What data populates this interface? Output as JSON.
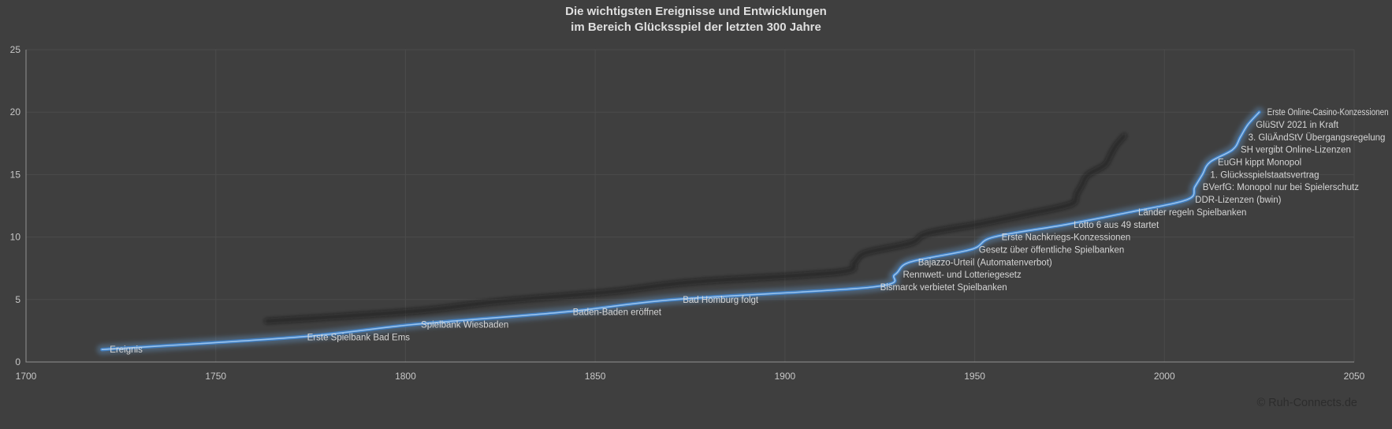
{
  "title": {
    "line1": "Die wichtigsten Ereignisse und Entwicklungen",
    "line2": "im Bereich Glücksspiel der letzten 300 Jahre"
  },
  "watermark": {
    "text": "© Ruh-Connects.de"
  },
  "chart_data": {
    "type": "line",
    "title": "Die wichtigsten Ereignisse und Entwicklungen im Bereich Glücksspiel der letzten 300 Jahre",
    "xlabel": "",
    "ylabel": "",
    "xlim": [
      1700,
      2050
    ],
    "ylim": [
      0,
      25
    ],
    "x_ticks": [
      1700,
      1750,
      1800,
      1850,
      1900,
      1950,
      2000,
      2050
    ],
    "y_ticks": [
      0,
      5,
      10,
      15,
      20,
      25
    ],
    "grid": true,
    "legend": false,
    "line_style": "smoothed, glow, perspective-shadow",
    "series": [
      {
        "name": "Ereignis",
        "color": "#5b9bd5",
        "points": [
          {
            "x": 1720,
            "y": 1,
            "label": "Ereignis"
          },
          {
            "x": 1772,
            "y": 2,
            "label": "Erste Spielbank Bad Ems"
          },
          {
            "x": 1802,
            "y": 3,
            "label": "Spielbank Wiesbaden"
          },
          {
            "x": 1842,
            "y": 4,
            "label": "Baden-Baden eröffnet"
          },
          {
            "x": 1871,
            "y": 5,
            "label": "Bad Homburg folgt"
          },
          {
            "x": 1923,
            "y": 6,
            "label": "Bismarck verbietet Spielbanken"
          },
          {
            "x": 1929,
            "y": 7,
            "label": "Rennwett- und Lotteriegesetz"
          },
          {
            "x": 1933,
            "y": 8,
            "label": "Bajazzo-Urteil (Automatenverbot)"
          },
          {
            "x": 1949,
            "y": 9,
            "label": "Gesetz über öffentliche Spielbanken"
          },
          {
            "x": 1955,
            "y": 10,
            "label": "Erste Nachkriegs-Konzessionen"
          },
          {
            "x": 1974,
            "y": 11,
            "label": "Lotto 6 aus 49 startet"
          },
          {
            "x": 1991,
            "y": 12,
            "label": "Länder regeln Spielbanken"
          },
          {
            "x": 2006,
            "y": 13,
            "label": "DDR-Lizenzen (bwin)"
          },
          {
            "x": 2008,
            "y": 14,
            "label": "BVerfG: Monopol nur bei Spielerschutz"
          },
          {
            "x": 2010,
            "y": 15,
            "label": "1. Glücksspielstaatsvertrag"
          },
          {
            "x": 2012,
            "y": 16,
            "label": "EuGH kippt Monopol"
          },
          {
            "x": 2018,
            "y": 17,
            "label": "SH vergibt Online-Lizenzen"
          },
          {
            "x": 2020,
            "y": 18,
            "label": "3. GlüÄndStV Übergangsregelung"
          },
          {
            "x": 2022,
            "y": 19,
            "label": "GlüStV 2021 in Kraft"
          },
          {
            "x": 2025,
            "y": 20,
            "label": "Erste Online-Casino-Konzessionen"
          }
        ]
      }
    ]
  },
  "style": {
    "background": "#3f3f3f",
    "grid_color": "#4b4b4b",
    "axis_color": "#919191",
    "tick_color": "#c8c8c8",
    "label_color": "#d6d6d6",
    "title_color": "#dfdfdf",
    "watermark_color": "#2c2c2c",
    "line_color": "#4080c4",
    "line_core_color": "#a3cbf2",
    "line_glow_color": "#6ea9e2",
    "shadow_color": "#161616"
  }
}
